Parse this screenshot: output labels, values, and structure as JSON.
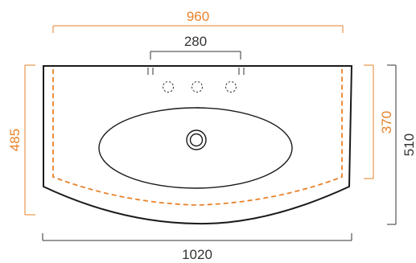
{
  "colors": {
    "accent": "#e8822a",
    "line": "#1a1a1a",
    "dim": "#333333",
    "background": "#ffffff"
  },
  "dimensions": {
    "top_width": "960",
    "tap_spacing": "280",
    "left_depth": "485",
    "right_inner": "370",
    "right_outer": "510",
    "bottom_width": "1020"
  }
}
